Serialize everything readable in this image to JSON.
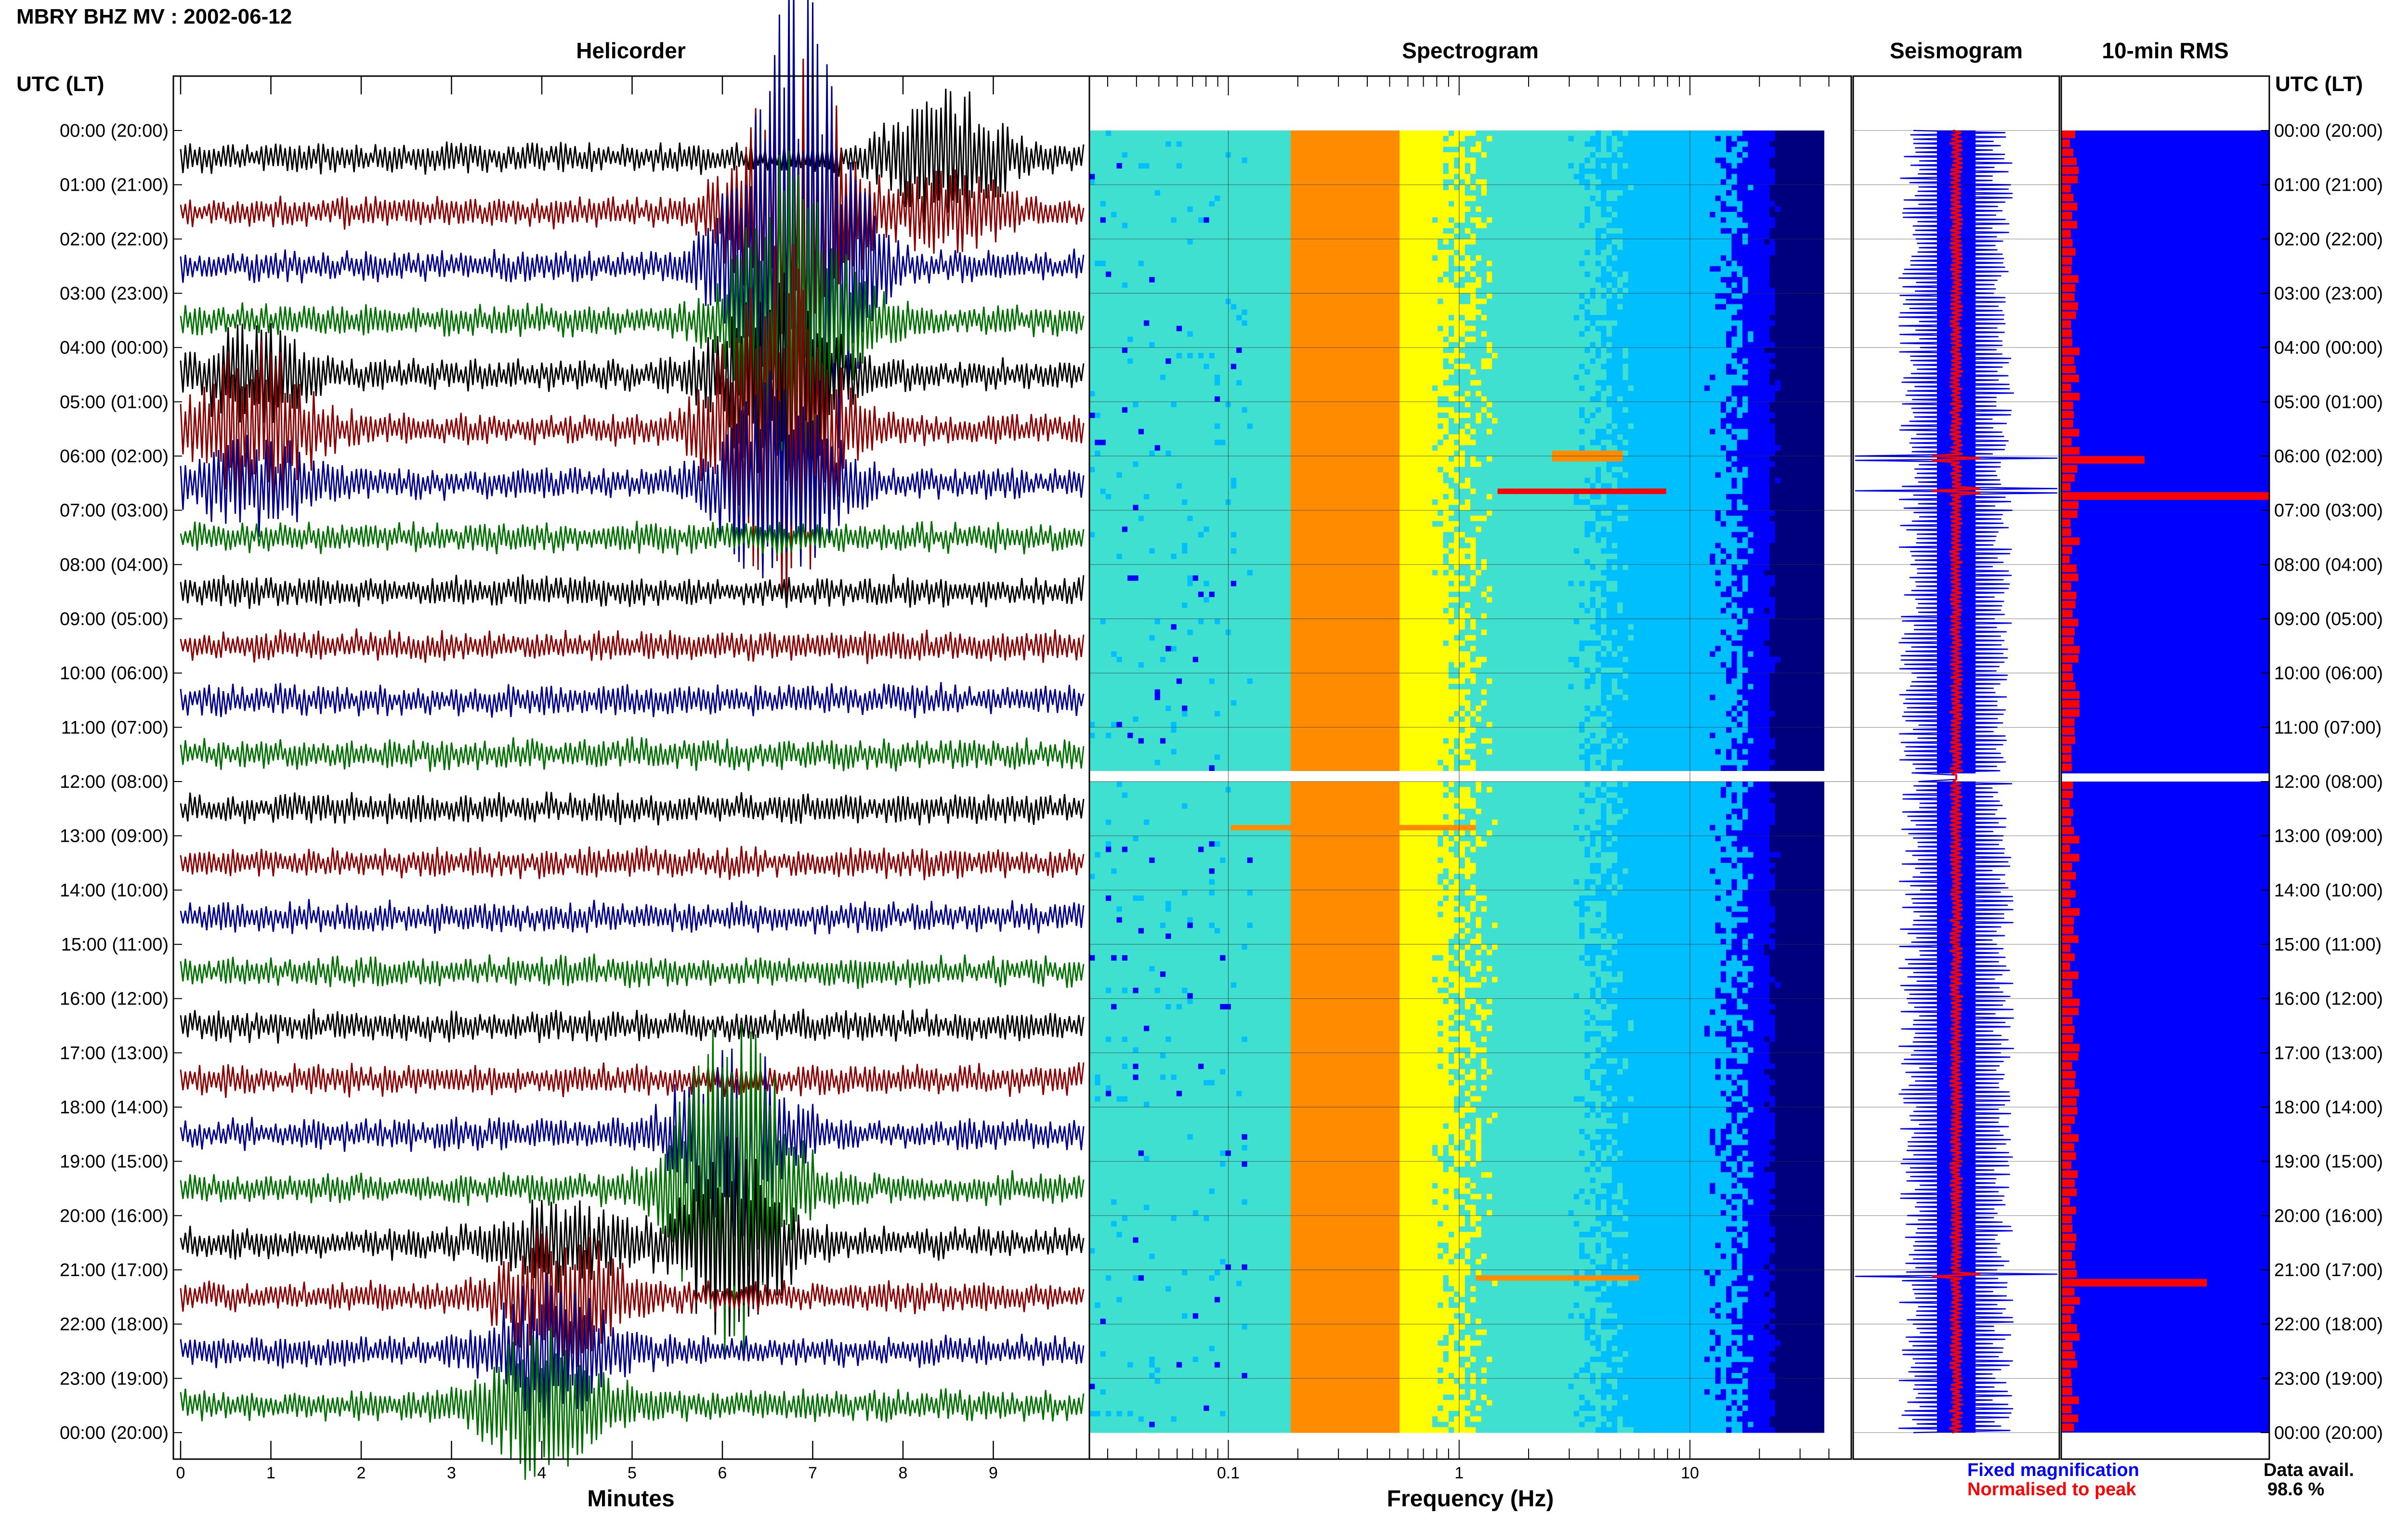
{
  "header": {
    "title": "MBRY BHZ MV : 2002-06-12"
  },
  "panels": {
    "helicorder": "Helicorder",
    "spectrogram": "Spectrogram",
    "seismogram": "Seismogram",
    "rms": "10-min RMS"
  },
  "axes": {
    "time_label_left": "UTC (LT)",
    "time_label_right": "UTC (LT)",
    "helicorder_xlabel": "Minutes",
    "spectrogram_xlabel": "Frequency (Hz)"
  },
  "legend": {
    "fixed": "Fixed magnification",
    "normalised": "Normalised to peak",
    "fixed_color": "#0000ff",
    "normalised_color": "#ff0000"
  },
  "availability": {
    "label": "Data avail.",
    "value": "98.6 %"
  },
  "chart_data": [
    {
      "type": "line",
      "panel": "helicorder",
      "title": "Helicorder",
      "xlabel": "Minutes",
      "xlim": [
        0,
        10
      ],
      "xticks": [
        "0",
        "1",
        "2",
        "3",
        "4",
        "5",
        "6",
        "7",
        "8",
        "9"
      ],
      "ylabel": "UTC (LT)",
      "row_labels": [
        "00:00 (20:00)",
        "01:00 (21:00)",
        "02:00 (22:00)",
        "03:00 (23:00)",
        "04:00 (00:00)",
        "05:00 (01:00)",
        "06:00 (02:00)",
        "07:00 (03:00)",
        "08:00 (04:00)",
        "09:00 (05:00)",
        "10:00 (06:00)",
        "11:00 (07:00)",
        "12:00 (08:00)",
        "13:00 (09:00)",
        "14:00 (10:00)",
        "15:00 (11:00)",
        "16:00 (12:00)",
        "17:00 (13:00)",
        "18:00 (14:00)",
        "19:00 (15:00)",
        "20:00 (16:00)",
        "21:00 (17:00)",
        "22:00 (18:00)",
        "23:00 (19:00)",
        "00:00 (20:00)"
      ],
      "trace_colors": [
        "#000000",
        "#8b0000",
        "#00008b",
        "#007000"
      ],
      "data_gap_hours": [
        11.85,
        12.0
      ],
      "events": [
        {
          "hour": 2.0,
          "minute": 6.8,
          "amplitude": 7.0,
          "color": "#007000"
        },
        {
          "hour": 5.0,
          "minute": 6.6,
          "amplitude": 4.5,
          "color": "#007000"
        },
        {
          "hour": 5.0,
          "minute": 0.8,
          "amplitude": 1.8,
          "color": "#000000"
        },
        {
          "hour": 0.0,
          "minute": 8.5,
          "amplitude": 1.4,
          "color": "#8b0000"
        },
        {
          "hour": 19.0,
          "minute": 6.1,
          "amplitude": 4.0,
          "color": "#00008b"
        },
        {
          "hour": 21.0,
          "minute": 4.2,
          "amplitude": 1.5,
          "color": "#000000"
        },
        {
          "hour": 23.0,
          "minute": 4.0,
          "amplitude": 1.6,
          "color": "#000000"
        }
      ]
    },
    {
      "type": "heatmap",
      "panel": "spectrogram",
      "title": "Spectrogram",
      "xlabel": "Frequency (Hz)",
      "x_scale": "log",
      "xlim": [
        0.025,
        50
      ],
      "xticks": [
        "0.1",
        "1",
        "10"
      ],
      "dominant_band_hz": [
        0.2,
        0.5
      ],
      "colormap": [
        "#00007f",
        "#0000ff",
        "#00bfff",
        "#40e0d0",
        "#ffff00",
        "#ff8c00",
        "#ff0000"
      ],
      "data_gap_hours": [
        11.85,
        12.0
      ],
      "hot_bands": [
        {
          "hour": 6.0,
          "freq_range": [
            2.5,
            5
          ],
          "level": 0.9
        },
        {
          "hour": 6.65,
          "freq_range": [
            1.5,
            8
          ],
          "level": 1.0
        },
        {
          "hour": 12.85,
          "freq_range": [
            0.1,
            1.2
          ],
          "level": 0.9
        },
        {
          "hour": 21.15,
          "freq_range": [
            1.2,
            6
          ],
          "level": 0.9
        }
      ]
    },
    {
      "type": "line",
      "panel": "seismogram",
      "title": "Seismogram",
      "series": [
        {
          "name": "Fixed magnification",
          "color": "#0000ff"
        },
        {
          "name": "Normalised to peak",
          "color": "#ff0000"
        }
      ],
      "data_gap_hours": [
        11.85,
        12.0
      ]
    },
    {
      "type": "bar",
      "panel": "rms",
      "title": "10-min RMS",
      "series": [
        {
          "name": "Fixed magnification",
          "color": "#0000ff"
        },
        {
          "name": "Normalised to peak",
          "color": "#ff0000"
        }
      ],
      "peaks": [
        {
          "hour": 6.05,
          "relative_value": 0.4
        },
        {
          "hour": 6.65,
          "relative_value": 1.0
        },
        {
          "hour": 21.1,
          "relative_value": 0.7
        }
      ],
      "data_gap_hours": [
        11.85,
        12.0
      ]
    }
  ]
}
